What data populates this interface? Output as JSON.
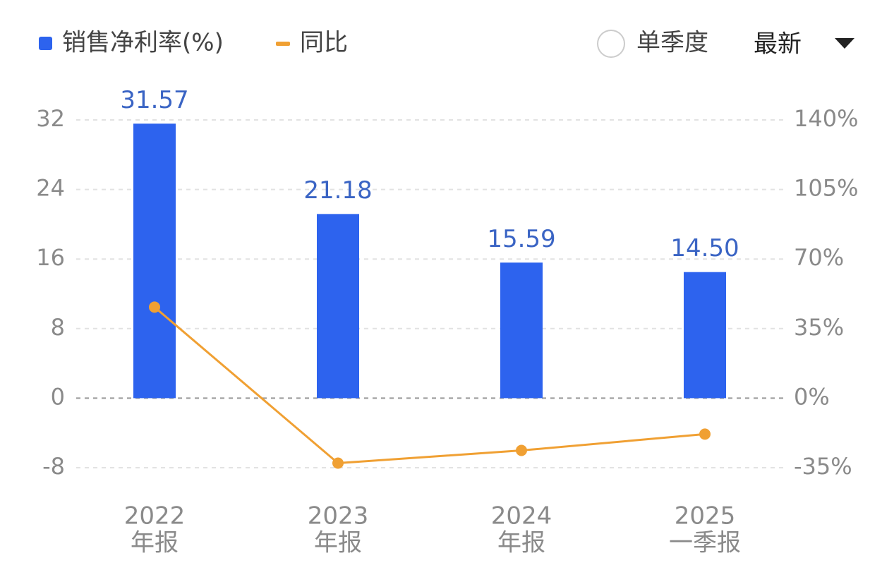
{
  "chart_data": {
    "type": "bar",
    "categories": [
      [
        "2022",
        "年报"
      ],
      [
        "2023",
        "年报"
      ],
      [
        "2024",
        "年报"
      ],
      [
        "2025",
        "一季报"
      ]
    ],
    "series": [
      {
        "name": "销售净利率(%)",
        "color": "#2d63ee",
        "type": "bar",
        "values": [
          31.57,
          21.18,
          15.59,
          14.5
        ],
        "value_labels": [
          "31.57",
          "21.18",
          "15.59",
          "14.50"
        ]
      },
      {
        "name": "同比",
        "color": "#f0a033",
        "type": "line",
        "axis": "y2",
        "values": [
          45.8,
          -32.7,
          -26.3,
          -18.1
        ]
      }
    ],
    "ylim": [
      -8,
      32
    ],
    "yticks": [
      -8,
      0,
      8,
      16,
      24,
      32
    ],
    "y2lim": [
      -35,
      140
    ],
    "y2ticks": [
      {
        "value": -35,
        "label": "-35%"
      },
      {
        "value": 0,
        "label": "0%"
      },
      {
        "value": 35,
        "label": "35%"
      },
      {
        "value": 70,
        "label": "70%"
      },
      {
        "value": 105,
        "label": "105%"
      },
      {
        "value": 140,
        "label": "140%"
      }
    ],
    "grid": true
  },
  "controls": {
    "single_quarter": "单季度",
    "period": "最新"
  }
}
